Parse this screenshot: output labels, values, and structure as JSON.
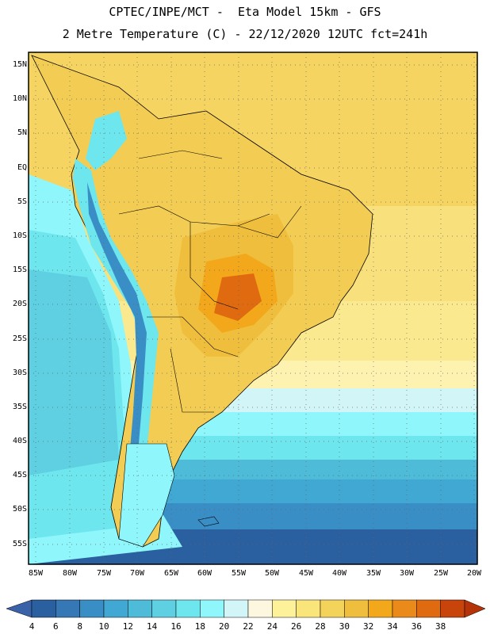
{
  "header": {
    "line1": "CPTEC/INPE/MCT -  Eta Model 15km - GFS",
    "line2": "2 Metre Temperature (C) - 22/12/2020 12UTC fct=241h"
  },
  "map": {
    "lat_labels": [
      "15N",
      "10N",
      "5N",
      "EQ",
      "5S",
      "10S",
      "15S",
      "20S",
      "25S",
      "30S",
      "35S",
      "40S",
      "45S",
      "50S",
      "55S"
    ],
    "lon_labels": [
      "85W",
      "80W",
      "75W",
      "70W",
      "65W",
      "60W",
      "55W",
      "50W",
      "45W",
      "40W",
      "35W",
      "30W",
      "25W",
      "20W"
    ]
  },
  "colorbar": {
    "labels": [
      "4",
      "6",
      "8",
      "10",
      "12",
      "14",
      "16",
      "18",
      "20",
      "22",
      "24",
      "26",
      "28",
      "30",
      "32",
      "34",
      "36",
      "38"
    ],
    "colors": [
      "#2a5fa0",
      "#3578b5",
      "#3a8ec6",
      "#41a8d3",
      "#4ebcd9",
      "#5ed0e2",
      "#6ee6ee",
      "#8ff7fb",
      "#d2f5f8",
      "#fdf7df",
      "#fdf29a",
      "#f9e57a",
      "#f4d35a",
      "#efbe3c",
      "#f3a81c",
      "#ea8a1a",
      "#e06a10",
      "#c8440a"
    ],
    "under_color": "#3a62a8",
    "over_color": "#b43308"
  }
}
